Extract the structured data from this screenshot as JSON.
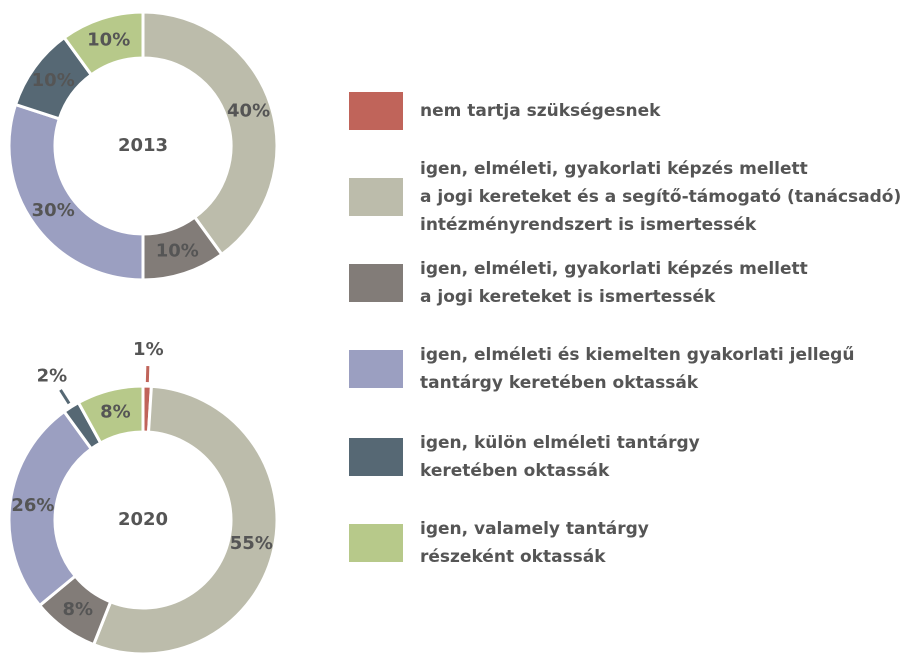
{
  "chart_data": [
    {
      "type": "pie",
      "title": "2013",
      "values": [
        null,
        40,
        10,
        30,
        10,
        10
      ],
      "value_labels": [
        null,
        "40%",
        "10%",
        "30%",
        "10%",
        "10%"
      ]
    },
    {
      "type": "pie",
      "title": "2020",
      "values": [
        1,
        55,
        8,
        26,
        2,
        8
      ],
      "value_labels": [
        "1%",
        "55%",
        "8%",
        "26%",
        "2%",
        "8%"
      ]
    }
  ],
  "legend": {
    "labels": [
      [
        "nem tartja szükségesnek"
      ],
      [
        "igen, elméleti, gyakorlati képzés mellett",
        "a jogi kereteket és a segítő-támogató (tanácsadó)",
        "intézményrendszert is ismertessék"
      ],
      [
        "igen, elméleti, gyakorlati képzés mellett",
        "a jogi kereteket is ismertessék"
      ],
      [
        "igen, elméleti és kiemelten gyakorlati jellegű",
        "tantárgy keretében oktassák"
      ],
      [
        "igen, külön elméleti tantárgy",
        "keretében oktassák"
      ],
      [
        "igen, valamely tantárgy",
        "részeként oktassák"
      ]
    ],
    "colors": [
      "#c0645a",
      "#bcbcab",
      "#827c78",
      "#9b9fc1",
      "#566874",
      "#b7c98a"
    ]
  }
}
